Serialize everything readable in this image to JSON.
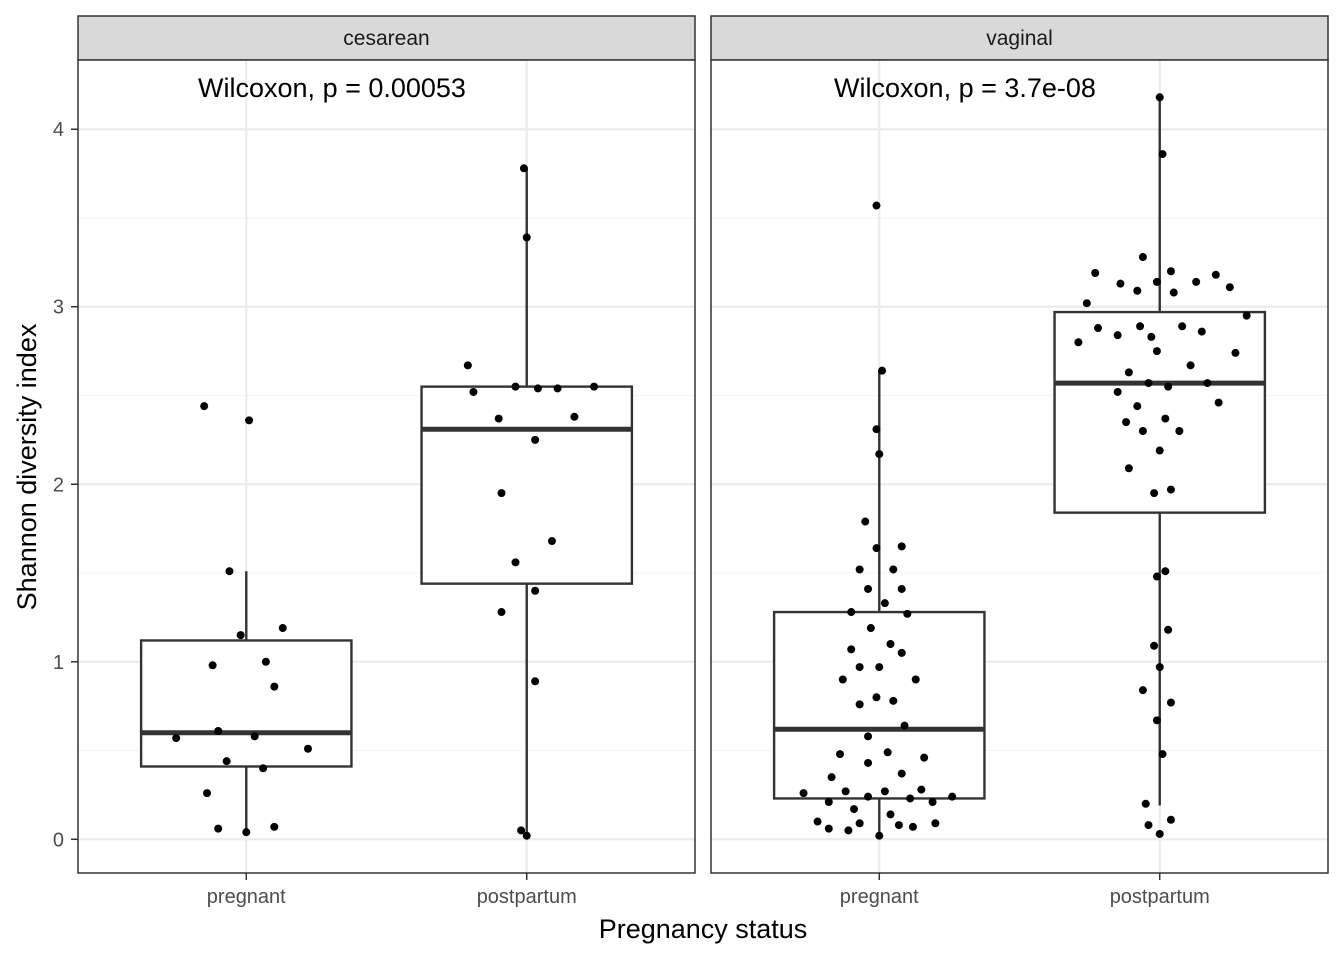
{
  "chart_data": {
    "type": "box",
    "xlabel": "Pregnancy status",
    "ylabel": "Shannon diversity index",
    "categories": [
      "pregnant",
      "postpartum"
    ],
    "ylim": [
      -0.19,
      4.39
    ],
    "yticks": [
      0,
      1,
      2,
      3,
      4
    ],
    "grid": true,
    "colors": {
      "box": "#333333",
      "point": "#000000",
      "strip": "#d9d9d9",
      "grid_major": "#ebebeb",
      "grid_minor": "#f5f5f5"
    },
    "panels": [
      {
        "strip": "cesarean",
        "annotation": "Wilcoxon, p = 0.00053",
        "boxes": [
          {
            "category": "pregnant",
            "min": 0.04,
            "q1": 0.41,
            "median": 0.6,
            "q3": 1.12,
            "max": 1.51
          },
          {
            "category": "postpartum",
            "min": 0.02,
            "q1": 1.44,
            "median": 2.31,
            "q3": 2.55,
            "max": 3.78
          }
        ],
        "points": {
          "pregnant": [
            [
              -0.15,
              2.44
            ],
            [
              0.01,
              2.36
            ],
            [
              -0.06,
              1.51
            ],
            [
              0.13,
              1.19
            ],
            [
              -0.02,
              1.15
            ],
            [
              -0.12,
              0.98
            ],
            [
              0.07,
              1.0
            ],
            [
              0.1,
              0.86
            ],
            [
              -0.1,
              0.61
            ],
            [
              0.03,
              0.58
            ],
            [
              -0.25,
              0.57
            ],
            [
              0.22,
              0.51
            ],
            [
              -0.07,
              0.44
            ],
            [
              0.06,
              0.4
            ],
            [
              -0.14,
              0.26
            ],
            [
              -0.1,
              0.06
            ],
            [
              0.0,
              0.04
            ],
            [
              0.1,
              0.07
            ]
          ],
          "postpartum": [
            [
              -0.21,
              2.67
            ],
            [
              -0.19,
              2.52
            ],
            [
              0.04,
              2.54
            ],
            [
              -0.1,
              2.37
            ],
            [
              -0.04,
              2.55
            ],
            [
              0.11,
              2.54
            ],
            [
              0.24,
              2.55
            ],
            [
              0.17,
              2.38
            ],
            [
              0.03,
              2.25
            ],
            [
              -0.09,
              1.95
            ],
            [
              0.09,
              1.68
            ],
            [
              -0.04,
              1.56
            ],
            [
              0.03,
              1.4
            ],
            [
              -0.09,
              1.28
            ],
            [
              0.03,
              0.89
            ],
            [
              -0.02,
              0.05
            ],
            [
              0.0,
              0.02
            ],
            [
              -0.01,
              3.78
            ],
            [
              0.0,
              3.39
            ]
          ]
        }
      },
      {
        "strip": "vaginal",
        "annotation": "Wilcoxon, p = 3.7e-08",
        "boxes": [
          {
            "category": "pregnant",
            "min": 0.01,
            "q1": 0.23,
            "median": 0.62,
            "q3": 1.28,
            "max": 2.64
          },
          {
            "category": "postpartum",
            "min": 0.19,
            "q1": 1.84,
            "median": 2.57,
            "q3": 2.97,
            "max": 4.18
          }
        ],
        "points": {
          "pregnant": [
            [
              -0.01,
              3.57
            ],
            [
              0.01,
              2.64
            ],
            [
              -0.01,
              2.31
            ],
            [
              0.0,
              2.17
            ],
            [
              -0.05,
              1.79
            ],
            [
              0.08,
              1.65
            ],
            [
              -0.01,
              1.64
            ],
            [
              -0.07,
              1.52
            ],
            [
              0.05,
              1.52
            ],
            [
              -0.04,
              1.41
            ],
            [
              0.08,
              1.41
            ],
            [
              0.02,
              1.33
            ],
            [
              -0.1,
              1.28
            ],
            [
              0.1,
              1.27
            ],
            [
              -0.03,
              1.19
            ],
            [
              0.04,
              1.1
            ],
            [
              -0.1,
              1.07
            ],
            [
              0.08,
              1.05
            ],
            [
              -0.07,
              0.97
            ],
            [
              0.0,
              0.97
            ],
            [
              -0.13,
              0.9
            ],
            [
              0.13,
              0.9
            ],
            [
              -0.01,
              0.8
            ],
            [
              0.05,
              0.78
            ],
            [
              -0.07,
              0.76
            ],
            [
              0.09,
              0.64
            ],
            [
              -0.04,
              0.58
            ],
            [
              -0.14,
              0.48
            ],
            [
              0.03,
              0.49
            ],
            [
              0.16,
              0.46
            ],
            [
              -0.04,
              0.43
            ],
            [
              -0.17,
              0.35
            ],
            [
              0.08,
              0.37
            ],
            [
              -0.12,
              0.27
            ],
            [
              0.02,
              0.27
            ],
            [
              0.15,
              0.28
            ],
            [
              -0.27,
              0.26
            ],
            [
              -0.18,
              0.21
            ],
            [
              -0.04,
              0.24
            ],
            [
              0.11,
              0.23
            ],
            [
              0.19,
              0.21
            ],
            [
              0.26,
              0.24
            ],
            [
              -0.09,
              0.17
            ],
            [
              0.04,
              0.14
            ],
            [
              -0.22,
              0.1
            ],
            [
              -0.07,
              0.09
            ],
            [
              0.07,
              0.08
            ],
            [
              0.2,
              0.09
            ],
            [
              -0.18,
              0.06
            ],
            [
              -0.11,
              0.05
            ],
            [
              0.12,
              0.07
            ],
            [
              0.0,
              0.02
            ]
          ],
          "postpartum": [
            [
              0.0,
              4.18
            ],
            [
              0.01,
              3.86
            ],
            [
              -0.06,
              3.28
            ],
            [
              -0.23,
              3.19
            ],
            [
              -0.14,
              3.13
            ],
            [
              -0.01,
              3.14
            ],
            [
              0.04,
              3.2
            ],
            [
              0.2,
              3.18
            ],
            [
              -0.26,
              3.02
            ],
            [
              -0.08,
              3.09
            ],
            [
              0.05,
              3.08
            ],
            [
              0.13,
              3.14
            ],
            [
              0.25,
              3.11
            ],
            [
              0.31,
              2.95
            ],
            [
              -0.29,
              2.8
            ],
            [
              -0.22,
              2.88
            ],
            [
              -0.07,
              2.89
            ],
            [
              0.08,
              2.89
            ],
            [
              0.15,
              2.86
            ],
            [
              -0.15,
              2.84
            ],
            [
              -0.03,
              2.83
            ],
            [
              -0.01,
              2.75
            ],
            [
              -0.11,
              2.63
            ],
            [
              0.11,
              2.67
            ],
            [
              0.27,
              2.74
            ],
            [
              -0.15,
              2.52
            ],
            [
              -0.04,
              2.57
            ],
            [
              0.03,
              2.55
            ],
            [
              0.17,
              2.57
            ],
            [
              -0.08,
              2.44
            ],
            [
              0.21,
              2.46
            ],
            [
              -0.12,
              2.35
            ],
            [
              0.02,
              2.37
            ],
            [
              -0.06,
              2.3
            ],
            [
              0.07,
              2.3
            ],
            [
              0.0,
              2.19
            ],
            [
              -0.11,
              2.09
            ],
            [
              -0.02,
              1.95
            ],
            [
              0.04,
              1.97
            ],
            [
              -0.01,
              1.48
            ],
            [
              0.02,
              1.51
            ],
            [
              0.03,
              1.18
            ],
            [
              -0.02,
              1.09
            ],
            [
              0.0,
              0.97
            ],
            [
              -0.06,
              0.84
            ],
            [
              0.04,
              0.77
            ],
            [
              -0.01,
              0.67
            ],
            [
              0.01,
              0.48
            ],
            [
              -0.05,
              0.2
            ],
            [
              -0.04,
              0.08
            ],
            [
              0.04,
              0.11
            ],
            [
              0.0,
              0.03
            ]
          ]
        }
      }
    ]
  }
}
